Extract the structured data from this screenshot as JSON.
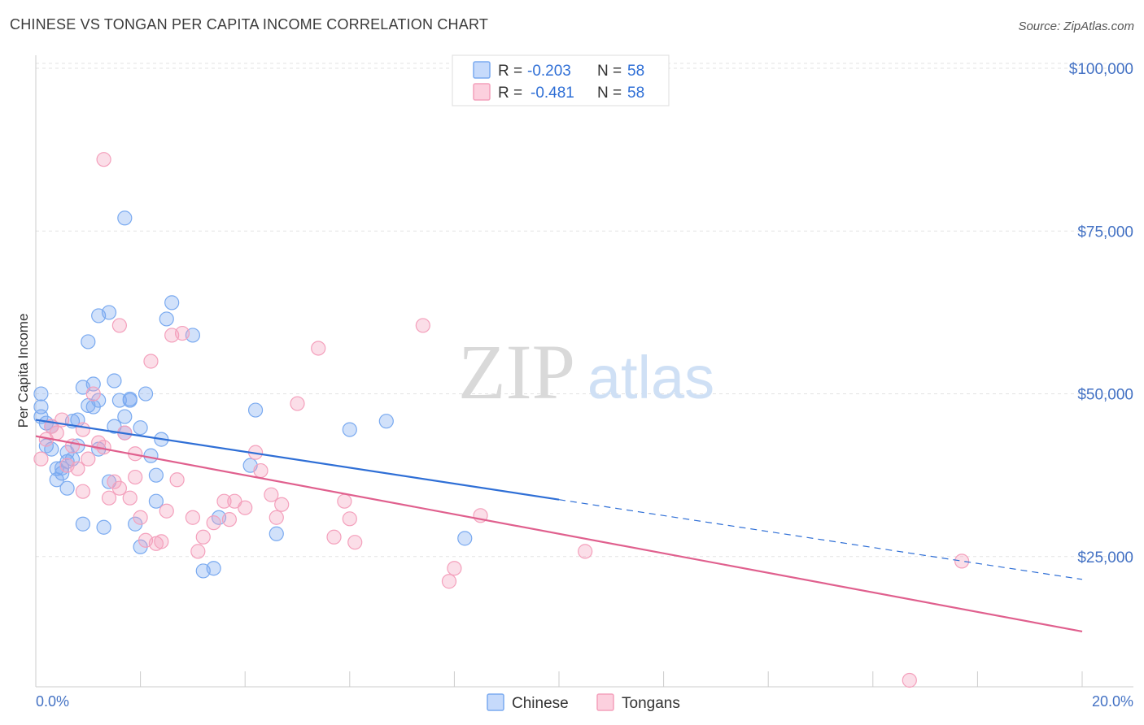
{
  "title": "CHINESE VS TONGAN PER CAPITA INCOME CORRELATION CHART",
  "source": "Source: ZipAtlas.com",
  "watermark": {
    "zip": "ZIP",
    "atlas": "atlas"
  },
  "legend": {
    "rows": [
      {
        "r_label": "R =",
        "r_value": "-0.203",
        "n_label": "N =",
        "n_value": "58",
        "color": "#7aaaf0"
      },
      {
        "r_label": "R =",
        "r_value": "-0.481",
        "n_label": "N =",
        "n_value": "58",
        "color": "#f4a0bc"
      }
    ]
  },
  "bottom_legend": [
    {
      "label": "Chinese",
      "color": "#7aaaf0"
    },
    {
      "label": "Tongans",
      "color": "#f4a0bc"
    }
  ],
  "chart_data": {
    "type": "scatter",
    "ylabel": "Per Capita Income",
    "xlabel": "",
    "xlim": [
      0,
      20
    ],
    "ylim": [
      5000,
      103000
    ],
    "x_tick_labels": {
      "min": "0.0%",
      "max": "20.0%"
    },
    "y_ticks": [
      {
        "value": 25000,
        "label": "$25,000"
      },
      {
        "value": 50000,
        "label": "$50,000"
      },
      {
        "value": 75000,
        "label": "$75,000"
      },
      {
        "value": 100000,
        "label": "$100,000"
      }
    ],
    "grid": true,
    "series": [
      {
        "name": "Chinese",
        "color": "#7aaaf0",
        "line_color": "#2f6fd6",
        "trend": {
          "x0": 0,
          "y0": 46000,
          "x1": 20,
          "y1": 21500,
          "solid_until": 10
        },
        "points": [
          [
            0.1,
            50000
          ],
          [
            0.1,
            48000
          ],
          [
            0.1,
            46500
          ],
          [
            0.2,
            45500
          ],
          [
            0.2,
            42000
          ],
          [
            0.3,
            41500
          ],
          [
            0.3,
            45000
          ],
          [
            0.4,
            38500
          ],
          [
            0.4,
            36800
          ],
          [
            0.5,
            37800
          ],
          [
            0.5,
            38600
          ],
          [
            0.6,
            39600
          ],
          [
            0.6,
            41000
          ],
          [
            0.7,
            45800
          ],
          [
            0.7,
            40000
          ],
          [
            0.8,
            46000
          ],
          [
            0.8,
            42000
          ],
          [
            0.9,
            51000
          ],
          [
            1.0,
            58000
          ],
          [
            1.0,
            48200
          ],
          [
            1.1,
            48000
          ],
          [
            1.1,
            51500
          ],
          [
            1.2,
            49000
          ],
          [
            1.2,
            41500
          ],
          [
            1.3,
            29500
          ],
          [
            1.2,
            62000
          ],
          [
            1.4,
            62500
          ],
          [
            1.5,
            45000
          ],
          [
            1.5,
            52000
          ],
          [
            1.6,
            49000
          ],
          [
            1.7,
            44000
          ],
          [
            1.7,
            46500
          ],
          [
            1.8,
            49000
          ],
          [
            1.8,
            49200
          ],
          [
            1.7,
            77000
          ],
          [
            1.9,
            30000
          ],
          [
            2.0,
            44800
          ],
          [
            2.0,
            26500
          ],
          [
            2.1,
            50000
          ],
          [
            2.2,
            40500
          ],
          [
            2.3,
            33500
          ],
          [
            2.3,
            37500
          ],
          [
            2.5,
            61500
          ],
          [
            2.6,
            64000
          ],
          [
            3.0,
            59000
          ],
          [
            3.2,
            22800
          ],
          [
            3.4,
            23200
          ],
          [
            3.5,
            31000
          ],
          [
            4.1,
            39000
          ],
          [
            4.2,
            47500
          ],
          [
            4.6,
            28500
          ],
          [
            6.0,
            44500
          ],
          [
            6.7,
            45800
          ],
          [
            8.2,
            27800
          ],
          [
            0.9,
            30000
          ],
          [
            1.4,
            36500
          ],
          [
            0.6,
            35500
          ],
          [
            2.4,
            43000
          ]
        ]
      },
      {
        "name": "Tongans",
        "color": "#f4a0bc",
        "line_color": "#e0608e",
        "trend": {
          "x0": 0,
          "y0": 43500,
          "x1": 20,
          "y1": 13500,
          "solid_until": 20
        },
        "points": [
          [
            0.1,
            40000
          ],
          [
            0.2,
            43000
          ],
          [
            0.3,
            45000
          ],
          [
            0.4,
            44000
          ],
          [
            0.5,
            46000
          ],
          [
            0.6,
            39000
          ],
          [
            0.7,
            42000
          ],
          [
            0.8,
            38500
          ],
          [
            0.9,
            44500
          ],
          [
            0.9,
            35000
          ],
          [
            1.0,
            40000
          ],
          [
            1.1,
            50000
          ],
          [
            1.2,
            42500
          ],
          [
            1.3,
            41800
          ],
          [
            1.3,
            86000
          ],
          [
            1.4,
            34000
          ],
          [
            1.5,
            36500
          ],
          [
            1.6,
            35500
          ],
          [
            1.6,
            60500
          ],
          [
            1.7,
            44000
          ],
          [
            1.8,
            34000
          ],
          [
            1.9,
            37200
          ],
          [
            1.9,
            40800
          ],
          [
            2.0,
            31000
          ],
          [
            2.1,
            27500
          ],
          [
            2.2,
            55000
          ],
          [
            2.3,
            27000
          ],
          [
            2.4,
            27300
          ],
          [
            2.5,
            32000
          ],
          [
            2.6,
            59000
          ],
          [
            2.7,
            36800
          ],
          [
            2.8,
            59300
          ],
          [
            3.0,
            31000
          ],
          [
            3.1,
            25800
          ],
          [
            3.2,
            28000
          ],
          [
            3.4,
            30200
          ],
          [
            3.6,
            33500
          ],
          [
            3.7,
            30700
          ],
          [
            3.8,
            33500
          ],
          [
            4.0,
            32500
          ],
          [
            4.2,
            41000
          ],
          [
            4.3,
            38200
          ],
          [
            4.5,
            34500
          ],
          [
            4.6,
            31000
          ],
          [
            4.7,
            33000
          ],
          [
            5.0,
            48500
          ],
          [
            5.4,
            57000
          ],
          [
            5.7,
            28000
          ],
          [
            5.9,
            33500
          ],
          [
            6.0,
            30800
          ],
          [
            6.1,
            27200
          ],
          [
            7.4,
            60500
          ],
          [
            7.9,
            21200
          ],
          [
            8.0,
            23200
          ],
          [
            8.5,
            31300
          ],
          [
            10.5,
            25800
          ],
          [
            16.7,
            6000
          ],
          [
            17.7,
            24300
          ]
        ]
      }
    ]
  }
}
